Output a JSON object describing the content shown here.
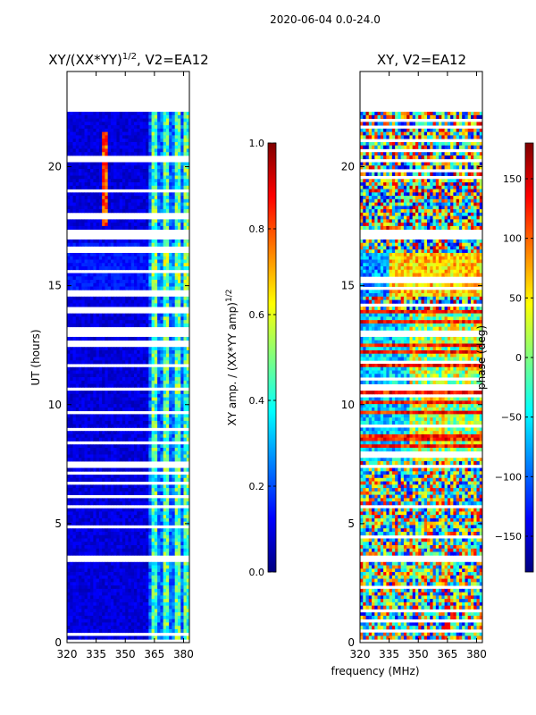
{
  "figure": {
    "suptitle": "2020-06-04 0.0-24.0",
    "xlabel": "frequency (MHz)"
  },
  "colors": {
    "jet": [
      "#00007f",
      "#0000ff",
      "#007fff",
      "#00ffff",
      "#7fff7f",
      "#ffff00",
      "#ff7f00",
      "#ff0000",
      "#7f0000"
    ]
  },
  "chart_data": [
    {
      "type": "heatmap",
      "title_text": "XY/(XX*YY)",
      "title_exp": "1/2",
      "title_suffix": ", V2=EA12",
      "xlabel": "",
      "ylabel": "UT (hours)",
      "xlim": [
        320,
        383
      ],
      "ylim": [
        0,
        24
      ],
      "xticks": [
        320,
        335,
        350,
        365,
        380
      ],
      "yticks": [
        0,
        5,
        10,
        15,
        20
      ],
      "colorbar": {
        "label_text": "XY amp. / (XX*YY amp)",
        "label_exp": "1/2",
        "range": [
          0.0,
          1.0
        ],
        "ticks": [
          "0.0",
          "0.2",
          "0.4",
          "0.6",
          "0.8",
          "1.0"
        ]
      },
      "white_gaps_hours": [
        [
          22.3,
          23.4
        ],
        [
          17.0,
          17.3
        ],
        [
          16.4,
          16.6
        ],
        [
          13.8,
          14.1
        ],
        [
          12.9,
          13.1
        ],
        [
          11.6,
          11.7
        ],
        [
          10.6,
          10.75
        ],
        [
          7.3,
          7.6
        ],
        [
          5.6,
          5.75
        ],
        [
          3.4,
          3.5
        ],
        [
          0.3,
          0.4
        ]
      ],
      "bright_freq_bands_mhz": [
        [
          363,
          366
        ],
        [
          369,
          372
        ],
        [
          375,
          378
        ],
        [
          380,
          383
        ]
      ],
      "note": "normalized cross-correlation amplitude, mostly low (0.0-0.2) with elevated values 0.3-0.6 above 363 MHz"
    },
    {
      "type": "heatmap",
      "title_text": "XY, V2=EA12",
      "xlabel": "",
      "ylabel": "",
      "xlim": [
        320,
        383
      ],
      "ylim": [
        0,
        24
      ],
      "xticks": [
        320,
        335,
        350,
        365,
        380
      ],
      "yticks": [
        0,
        5,
        10,
        15,
        20
      ],
      "colorbar": {
        "label_text": "phase (deg)",
        "range": [
          -180,
          180
        ],
        "ticks": [
          "−150",
          "−100",
          "−50",
          "0",
          "50",
          "100",
          "150"
        ]
      },
      "white_gaps_hours": [
        [
          22.3,
          23.4
        ],
        [
          17.0,
          17.3
        ],
        [
          14.2,
          14.3
        ],
        [
          12.9,
          13.1
        ],
        [
          10.6,
          10.75
        ],
        [
          7.3,
          7.5
        ],
        [
          5.6,
          5.75
        ],
        [
          3.4,
          3.5
        ]
      ],
      "note": "cross-correlation phase, spans full -180..180 deg range with coherent band near 15-16.5 h around +50 deg"
    }
  ]
}
